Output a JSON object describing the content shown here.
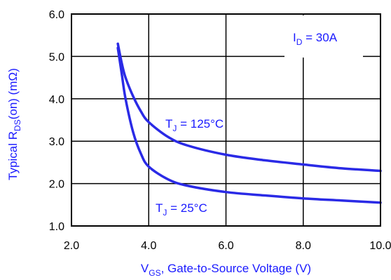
{
  "colors": {
    "curve": "#2a2ae6",
    "label": "#1a1aff",
    "grid": "#000000",
    "background": "#ffffff"
  },
  "chart_data": {
    "type": "line",
    "title": "",
    "xlabel": {
      "main": "V",
      "sub": "GS",
      "rest": ", Gate-to-Source Voltage (V)"
    },
    "ylabel": {
      "pre": "Typical  R",
      "sub": "DS",
      "post": "(on) (mΩ)"
    },
    "xlim": [
      2.0,
      10.0
    ],
    "ylim": [
      1.0,
      6.0
    ],
    "xticks": [
      "2.0",
      "4.0",
      "6.0",
      "8.0",
      "10.0"
    ],
    "yticks": [
      "1.0",
      "2.0",
      "3.0",
      "4.0",
      "5.0",
      "6.0"
    ],
    "grid": true,
    "annotation": {
      "pre": "I",
      "sub": "D",
      "post": " = 30A"
    },
    "series": [
      {
        "label": {
          "pre": "T",
          "sub": "J",
          "post": " = 125°C"
        },
        "x": [
          3.2,
          3.3,
          3.4,
          3.6,
          3.8,
          4.0,
          4.5,
          5.0,
          6.0,
          7.0,
          8.0,
          9.0,
          10.0
        ],
        "y": [
          5.3,
          4.85,
          4.5,
          4.05,
          3.7,
          3.45,
          3.1,
          2.9,
          2.68,
          2.55,
          2.45,
          2.36,
          2.3
        ]
      },
      {
        "label": {
          "pre": "T",
          "sub": "J",
          "post": " = 25°C"
        },
        "x": [
          3.2,
          3.3,
          3.4,
          3.6,
          3.8,
          4.0,
          4.5,
          5.0,
          6.0,
          7.0,
          8.0,
          9.0,
          10.0
        ],
        "y": [
          5.2,
          4.6,
          4.0,
          3.2,
          2.7,
          2.4,
          2.1,
          1.95,
          1.8,
          1.72,
          1.65,
          1.6,
          1.55
        ]
      }
    ]
  }
}
